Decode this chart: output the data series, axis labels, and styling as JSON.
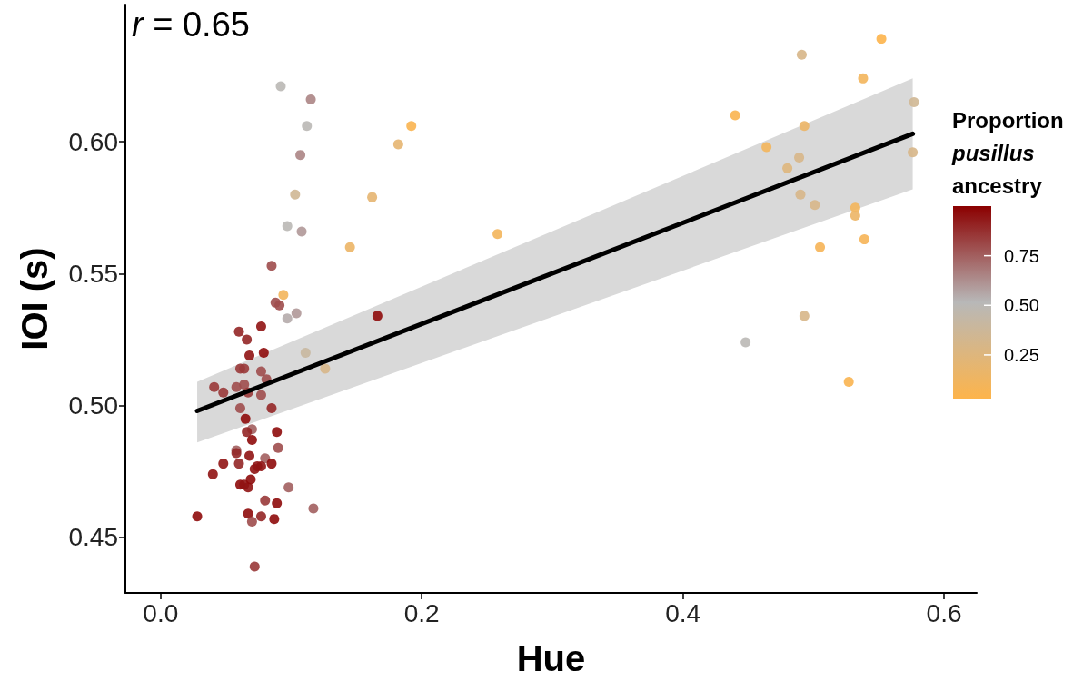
{
  "chart_data": {
    "type": "scatter",
    "xlabel": "Hue",
    "ylabel": "IOI (s)",
    "clabel": "Proportion pusillus ancestry",
    "annotations": [
      "r = 0.65"
    ],
    "xlim": [
      -0.027,
      0.625
    ],
    "ylim": [
      0.429,
      0.652
    ],
    "xticks": [
      {
        "value": 0,
        "label": "0.0"
      },
      0.2,
      0.4,
      0.6
    ],
    "yticks": [
      0.45,
      {
        "value": 0.5,
        "label": "0.50"
      },
      0.55,
      {
        "value": 0.6,
        "label": "0.60"
      }
    ],
    "clim": [
      0.03,
      1.0
    ],
    "cticks": [
      0.25,
      {
        "value": 0.5,
        "label": "0.50"
      },
      0.75
    ],
    "grid": false,
    "marker": "circle",
    "series": [
      {
        "x": [
          0.085,
          0.094,
          0.088,
          0.091,
          0.097,
          0.104,
          0.06,
          0.077,
          0.066,
          0.068,
          0.079,
          0.111,
          0.126,
          0.061,
          0.064,
          0.077,
          0.081,
          0.041,
          0.048,
          0.058,
          0.064,
          0.067,
          0.077,
          0.061,
          0.085,
          0.065,
          0.07,
          0.066,
          0.07,
          0.089,
          0.09,
          0.058,
          0.058,
          0.068,
          0.08,
          0.048,
          0.06,
          0.077,
          0.074,
          0.085,
          0.072,
          0.04,
          0.098,
          0.061,
          0.064,
          0.067,
          0.069,
          0.08,
          0.089,
          0.117,
          0.028,
          0.067,
          0.07,
          0.077,
          0.087,
          0.072,
          0.166,
          0.092,
          0.115,
          0.112,
          0.107,
          0.192,
          0.182,
          0.103,
          0.162,
          0.097,
          0.108,
          0.145,
          0.258,
          0.552,
          0.491,
          0.538,
          0.577,
          0.44,
          0.493,
          0.464,
          0.489,
          0.48,
          0.576,
          0.49,
          0.501,
          0.532,
          0.532,
          0.539,
          0.505,
          0.493,
          0.448,
          0.527
        ],
        "values": [
          0.553,
          0.542,
          0.539,
          0.538,
          0.533,
          0.535,
          0.528,
          0.53,
          0.525,
          0.519,
          0.52,
          0.52,
          0.514,
          0.514,
          0.514,
          0.513,
          0.51,
          0.507,
          0.505,
          0.507,
          0.508,
          0.505,
          0.504,
          0.499,
          0.499,
          0.495,
          0.491,
          0.49,
          0.487,
          0.49,
          0.484,
          0.483,
          0.482,
          0.481,
          0.48,
          0.478,
          0.478,
          0.477,
          0.477,
          0.478,
          0.476,
          0.474,
          0.469,
          0.47,
          0.47,
          0.469,
          0.472,
          0.464,
          0.463,
          0.461,
          0.458,
          0.459,
          0.456,
          0.458,
          0.457,
          0.439,
          0.534,
          0.621,
          0.616,
          0.606,
          0.595,
          0.606,
          0.599,
          0.58,
          0.579,
          0.568,
          0.566,
          0.56,
          0.565,
          0.639,
          0.633,
          0.624,
          0.615,
          0.61,
          0.606,
          0.598,
          0.594,
          0.59,
          0.596,
          0.58,
          0.576,
          0.575,
          0.572,
          0.563,
          0.56,
          0.534,
          0.524,
          0.509
        ],
        "colors": [
          "#9e4c4c",
          "#f3b55b",
          "#9e4c4c",
          "#9e4c4c",
          "#b5abab",
          "#b09898",
          "#942626",
          "#901313",
          "#942626",
          "#901313",
          "#8e0b0b",
          "#c8b79e",
          "#d7b688",
          "#993939",
          "#993939",
          "#9e4c4c",
          "#9e4c4c",
          "#993939",
          "#993939",
          "#9e4c4c",
          "#9e4c4c",
          "#993939",
          "#9e4c4c",
          "#9e4c4c",
          "#942626",
          "#8e0b0b",
          "#a25f5f",
          "#942626",
          "#8e0b0b",
          "#8e0b0b",
          "#9e4c4c",
          "#a25f5f",
          "#942626",
          "#901313",
          "#a25f5f",
          "#901313",
          "#942626",
          "#901313",
          "#901313",
          "#8e0b0b",
          "#901313",
          "#901313",
          "#a25f5f",
          "#8e0b0b",
          "#901313",
          "#901313",
          "#8e0b0b",
          "#993939",
          "#8e0b0b",
          "#a25f5f",
          "#8e0b0b",
          "#8e0b0b",
          "#9e4c4c",
          "#942626",
          "#8e0b0b",
          "#993939",
          "#8e0b0b",
          "#bab8b5",
          "#ac8585",
          "#bab8b5",
          "#ac8585",
          "#fab450",
          "#e5b571",
          "#cfb793",
          "#e5b571",
          "#bab8b5",
          "#b09898",
          "#ecb566",
          "#f3b55b",
          "#fdb44b",
          "#d7b688",
          "#f3b55b",
          "#cfb793",
          "#fab450",
          "#ecb566",
          "#f3b55b",
          "#d7b688",
          "#deb67c",
          "#d7b688",
          "#d7b688",
          "#d7b688",
          "#f3b55b",
          "#ecb566",
          "#f6b456",
          "#f6b456",
          "#d7b688",
          "#bab8b5",
          "#fab450"
        ]
      },
      {
        "type": "line",
        "color": "#000000",
        "marker": "none",
        "x": [
          0.028,
          0.576
        ],
        "values": [
          0.498,
          0.603
        ],
        "lower": [
          0.486,
          0.582
        ],
        "upper": [
          0.509,
          0.624
        ]
      }
    ]
  }
}
